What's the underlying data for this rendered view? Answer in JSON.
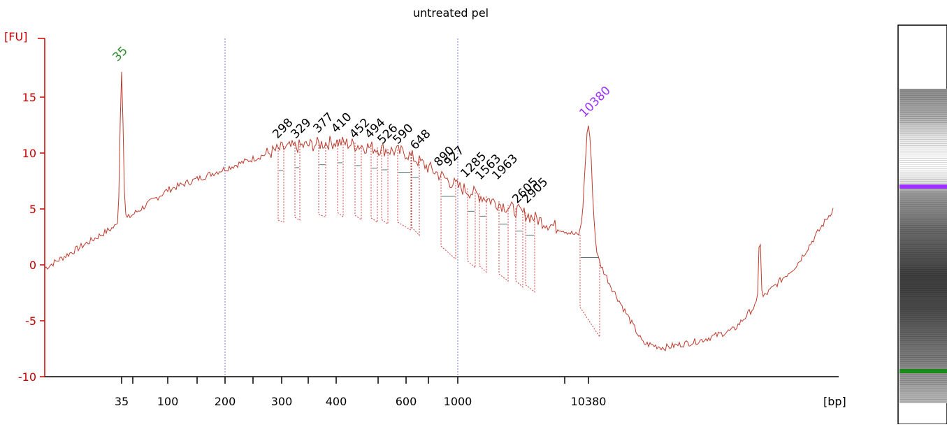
{
  "chart_data": {
    "type": "line",
    "title": "untreated pel",
    "ylabel": "[FU]",
    "xlabel": "[bp]",
    "ylim": [
      -10,
      17
    ],
    "yticks": [
      -10,
      -5,
      0,
      5,
      10,
      15
    ],
    "x_axis_scale": "bp (non-linear ladder)",
    "x_tick_labels": [
      "35",
      "100",
      "200",
      "300",
      "400",
      "600",
      "1000",
      "10380"
    ],
    "vertical_gridlines_at_bp": [
      200,
      1000
    ],
    "marker_peaks": [
      {
        "size": "35",
        "role": "lower marker",
        "fu": 17.5,
        "color": "#2e8b2e"
      },
      {
        "size": "10380",
        "role": "upper marker",
        "fu": 12.5,
        "color": "#9b30ff"
      }
    ],
    "peaks": [
      {
        "size": "298",
        "fu": 11.0
      },
      {
        "size": "329",
        "fu": 11.0
      },
      {
        "size": "377",
        "fu": 11.5
      },
      {
        "size": "410",
        "fu": 11.5
      },
      {
        "size": "452",
        "fu": 11.0
      },
      {
        "size": "494",
        "fu": 11.0
      },
      {
        "size": "526",
        "fu": 10.5
      },
      {
        "size": "590",
        "fu": 10.5
      },
      {
        "size": "648",
        "fu": 10.0
      },
      {
        "size": "890",
        "fu": 8.5
      },
      {
        "size": "927",
        "fu": 8.5
      },
      {
        "size": "1285",
        "fu": 7.5
      },
      {
        "size": "1563",
        "fu": 7.3
      },
      {
        "size": "1963",
        "fu": 7.3
      },
      {
        "size": "2605",
        "fu": 5.2
      },
      {
        "size": "2905",
        "fu": 5.2
      }
    ],
    "trace_profile": [
      {
        "bp_position": "start",
        "fu": -0.3
      },
      {
        "bp_position": "35",
        "fu": 3.8
      },
      {
        "bp_position": "100",
        "fu": 6.7
      },
      {
        "bp_position": "200",
        "fu": 8.6
      },
      {
        "bp_position": "300",
        "fu": 10.4
      },
      {
        "bp_position": "400",
        "fu": 11.0
      },
      {
        "bp_position": "600",
        "fu": 10.0
      },
      {
        "bp_position": "1000",
        "fu": 7.0
      },
      {
        "bp_position": "10380",
        "fu": 2.2
      },
      {
        "bp_position": "end",
        "fu": 5.0
      }
    ],
    "colors": {
      "trace": "#c0392b",
      "axis": "#cc0000",
      "grid": "#7777cc",
      "peak_labels": "#000000"
    },
    "gel_lane": {
      "upper_marker_color": "#9b30ff",
      "lower_marker_color": "#1a8a1a"
    }
  }
}
